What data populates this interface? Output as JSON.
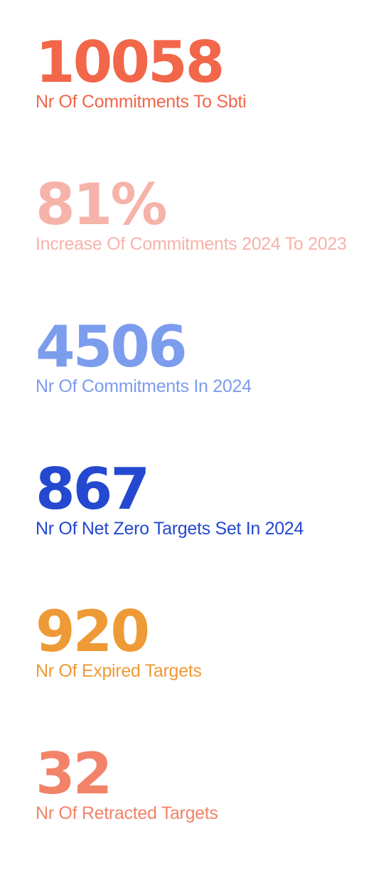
{
  "stats": [
    {
      "value": "10058",
      "label": "Nr Of Commitments To Sbti",
      "color": "#F2664A"
    },
    {
      "value": "81%",
      "label": "Increase Of Commitments 2024 To 2023",
      "color": "#F6B3AA"
    },
    {
      "value": "4506",
      "label": "Nr Of Commitments In 2024",
      "color": "#7C9CEE"
    },
    {
      "value": "867",
      "label": "Nr Of Net Zero Targets Set In 2024",
      "color": "#2448D0"
    },
    {
      "value": "920",
      "label": "Nr Of Expired Targets",
      "color": "#EE9A36"
    },
    {
      "value": "32",
      "label": "Nr Of Retracted Targets",
      "color": "#F28368"
    }
  ]
}
